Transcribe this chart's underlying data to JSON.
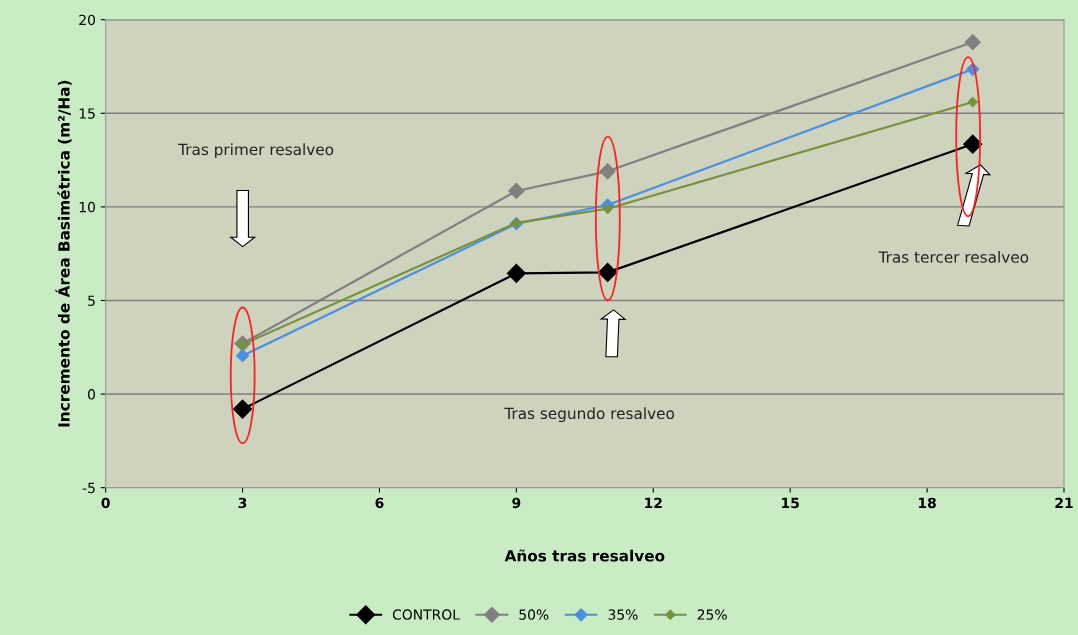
{
  "chart_data": {
    "type": "line",
    "xlabel": "Años tras resalveo",
    "ylabel": "Incremento de Área Basimétrica (m²/Ha)",
    "x": [
      3,
      9,
      11,
      19
    ],
    "series": [
      {
        "name": "CONTROL",
        "color": "#000000",
        "values": [
          -0.8,
          6.45,
          6.5,
          13.35
        ]
      },
      {
        "name": "50%",
        "color": "#808080",
        "values": [
          2.7,
          10.85,
          11.9,
          18.8
        ]
      },
      {
        "name": "35%",
        "color": "#4f8fdf",
        "values": [
          2.05,
          9.1,
          10.1,
          17.35
        ]
      },
      {
        "name": "25%",
        "color": "#76923c",
        "values": [
          2.65,
          9.15,
          9.9,
          15.6
        ]
      }
    ],
    "xlim": [
      0,
      21
    ],
    "xticks": [
      0,
      3,
      6,
      9,
      12,
      15,
      18,
      21
    ],
    "ylim": [
      -5,
      20
    ],
    "yticks": [
      -5,
      0,
      5,
      10,
      15,
      20
    ],
    "annotations": [
      "Tras primer resalveo",
      "Tras segundo resalveo",
      "Tras tercer resalveo"
    ],
    "grid": "y",
    "legend": "bottom",
    "marker": "diamond",
    "line_style": "solid"
  }
}
